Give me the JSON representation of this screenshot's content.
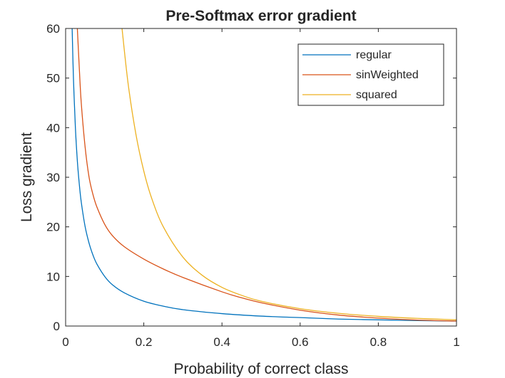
{
  "chart_data": {
    "type": "line",
    "title": "Pre-Softmax error gradient",
    "xlabel": "Probability of correct class",
    "ylabel": "Loss gradient",
    "xlim": [
      0,
      1
    ],
    "ylim": [
      0,
      60
    ],
    "xticks": [
      0,
      0.2,
      0.4,
      0.6,
      0.8,
      1
    ],
    "xtick_labels": [
      "0",
      "0.2",
      "0.4",
      "0.6",
      "0.8",
      "1"
    ],
    "yticks": [
      0,
      10,
      20,
      30,
      40,
      50,
      60
    ],
    "ytick_labels": [
      "0",
      "10",
      "20",
      "30",
      "40",
      "50",
      "60"
    ],
    "grid": false,
    "legend_position": "top-right",
    "series": [
      {
        "name": "regular",
        "color": "#0072BD",
        "x": [
          0.0167,
          0.02,
          0.025,
          0.03,
          0.035,
          0.04,
          0.05,
          0.06,
          0.07,
          0.08,
          0.1,
          0.12,
          0.15,
          0.2,
          0.25,
          0.3,
          0.4,
          0.5,
          0.6,
          0.7,
          0.8,
          0.9,
          1.0
        ],
        "values": [
          60,
          50,
          40,
          33.3,
          28.6,
          25,
          20,
          16.7,
          14.3,
          12.5,
          10,
          8.3,
          6.7,
          5,
          4,
          3.3,
          2.5,
          2,
          1.7,
          1.4,
          1.25,
          1.1,
          1
        ]
      },
      {
        "name": "sinWeighted",
        "color": "#D95319",
        "x": [
          0.03,
          0.035,
          0.04,
          0.05,
          0.06,
          0.07,
          0.08,
          0.1,
          0.12,
          0.15,
          0.2,
          0.25,
          0.3,
          0.4,
          0.45,
          0.5,
          0.6,
          0.7,
          0.8,
          0.9,
          1.0
        ],
        "values": [
          60,
          52,
          45,
          36,
          30,
          26.5,
          24,
          20.5,
          18.2,
          16,
          13.5,
          11.5,
          9.8,
          6.9,
          5.7,
          4.7,
          3.2,
          2.2,
          1.6,
          1.2,
          1
        ]
      },
      {
        "name": "squared",
        "color": "#EDB120",
        "x": [
          0.1443,
          0.16,
          0.18,
          0.2,
          0.22,
          0.25,
          0.3,
          0.35,
          0.4,
          0.45,
          0.5,
          0.6,
          0.7,
          0.8,
          0.9,
          1.0
        ],
        "values": [
          60,
          48.8,
          38.6,
          31.25,
          25.8,
          20,
          13.9,
          10.2,
          7.8,
          6.2,
          5,
          3.5,
          2.55,
          1.95,
          1.54,
          1.25
        ]
      }
    ]
  }
}
